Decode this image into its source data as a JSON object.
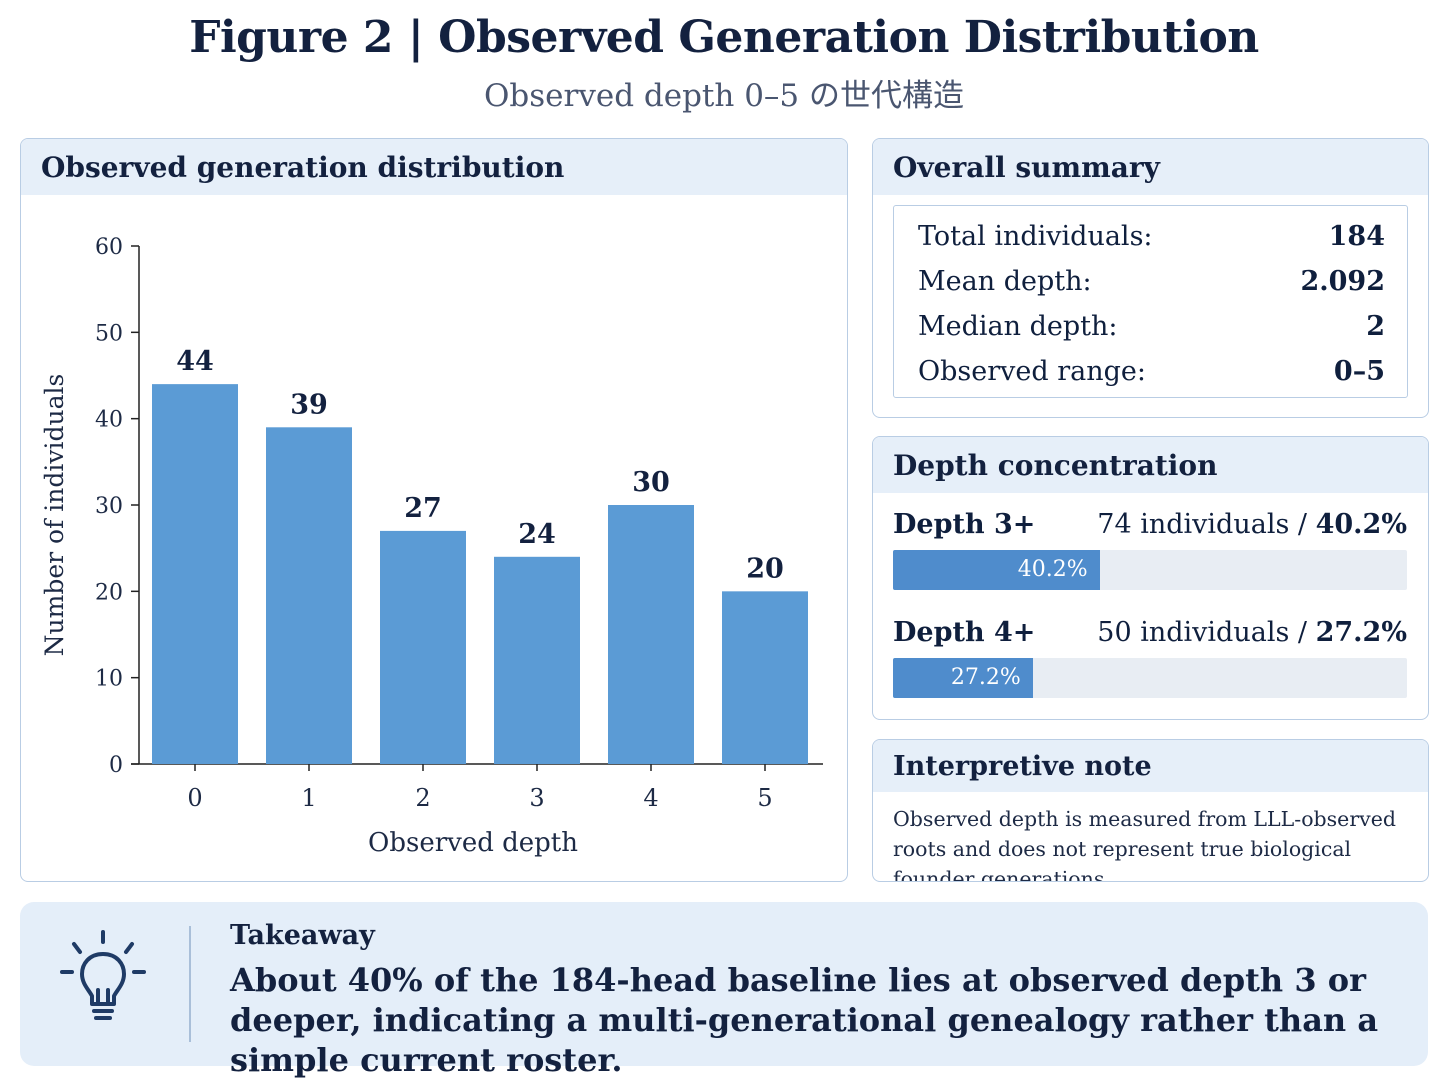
{
  "header": {
    "title": "Figure 2 | Observed Generation Distribution",
    "subtitle": "Observed depth 0–5 の世代構造"
  },
  "chart_panel": {
    "title": "Observed generation distribution"
  },
  "chart_data": {
    "type": "bar",
    "categories": [
      "0",
      "1",
      "2",
      "3",
      "4",
      "5"
    ],
    "values": [
      44,
      39,
      27,
      24,
      30,
      20
    ],
    "xlabel": "Observed depth",
    "ylabel": "Number of individuals",
    "ylim": [
      0,
      60
    ],
    "yticks": [
      0,
      10,
      20,
      30,
      40,
      50,
      60
    ],
    "grid": false,
    "data_labels": true,
    "bar_color": "#5b9bd5"
  },
  "summary": {
    "title": "Overall summary",
    "rows": [
      {
        "label": "Total individuals:",
        "value": "184"
      },
      {
        "label": "Mean depth:",
        "value": "2.092"
      },
      {
        "label": "Median depth:",
        "value": "2"
      },
      {
        "label": "Observed range:",
        "value": "0–5"
      }
    ]
  },
  "concentration": {
    "title": "Depth concentration",
    "items": [
      {
        "label": "Depth 3+",
        "count": "74 individuals / ",
        "pct_text": "40.2%",
        "pct": 40.2
      },
      {
        "label": "Depth 4+",
        "count": "50 individuals / ",
        "pct_text": "27.2%",
        "pct": 27.2
      }
    ]
  },
  "note": {
    "title": "Interpretive note",
    "text": "Observed depth is measured from LLL-observed roots and does not represent true biological founder generations."
  },
  "takeaway": {
    "title": "Takeaway",
    "text": "About 40% of the 184-head baseline lies at observed depth 3 or deeper, indicating a multi-generational genealogy rather than a simple current roster."
  },
  "colors": {
    "accent": "#4f8ccc",
    "panel_header": "#e6eff9",
    "border": "#b9cde4",
    "takeaway_bg": "#e4eef9"
  }
}
